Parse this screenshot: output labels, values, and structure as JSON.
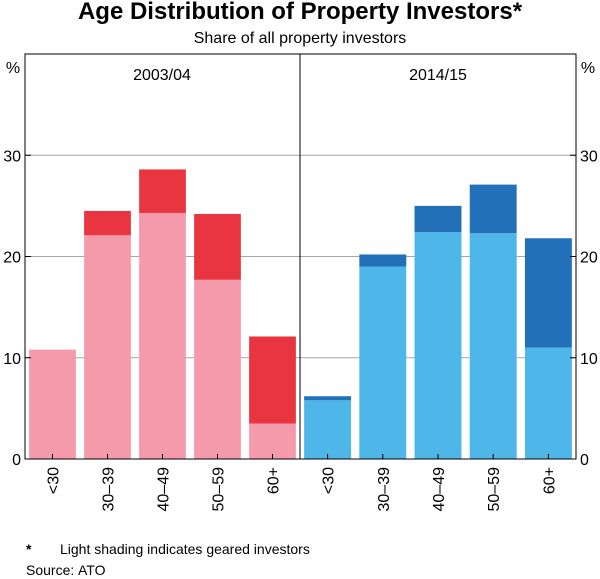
{
  "title": "Age Distribution of Property Investors*",
  "subtitle": "Share of all property investors",
  "unit_left": "%",
  "unit_right": "%",
  "footnote_marker": "*",
  "footnote_text": "Light shading indicates geared investors",
  "source_label": "Source:",
  "source_text": "ATO",
  "chart_data": {
    "type": "bar",
    "stacked": true,
    "ylim": [
      0,
      40
    ],
    "yticks": [
      0,
      10,
      20,
      30
    ],
    "ytick_labels": [
      "0",
      "10",
      "20",
      "30"
    ],
    "grid": true,
    "panels": [
      {
        "title": "2003/04",
        "categories": [
          "<30",
          "30–39",
          "40–49",
          "50–59",
          "60+"
        ],
        "series": [
          {
            "role": "geared",
            "color": "#f59aab",
            "values": [
              10.8,
              22.1,
              24.3,
              17.7,
              3.5
            ]
          },
          {
            "role": "ungeared",
            "color": "#e83540",
            "values": [
              0.0,
              2.4,
              4.3,
              6.5,
              8.6
            ]
          }
        ]
      },
      {
        "title": "2014/15",
        "categories": [
          "<30",
          "30–39",
          "40–49",
          "50–59",
          "60+"
        ],
        "series": [
          {
            "role": "geared",
            "color": "#4eb6e8",
            "values": [
              5.8,
              19.0,
              22.4,
              22.3,
              11.0
            ]
          },
          {
            "role": "ungeared",
            "color": "#2270b8",
            "values": [
              0.4,
              1.2,
              2.6,
              4.8,
              10.8
            ]
          }
        ]
      }
    ]
  }
}
